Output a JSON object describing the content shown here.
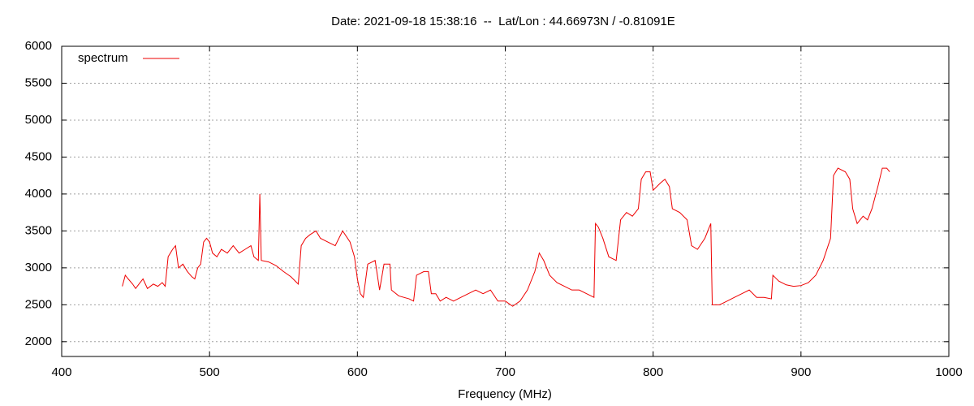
{
  "chart_data": {
    "type": "line",
    "title": "Date: 2021-09-18 15:38:16  --  Lat/Lon : 44.66973N / -0.81091E",
    "x_label": "Frequency (MHz)",
    "legend_position": "top-left",
    "grid": true,
    "xlim": [
      400,
      1000
    ],
    "xticks": [
      400,
      500,
      600,
      700,
      800,
      900,
      1000
    ],
    "ylim": [
      1800,
      6000
    ],
    "yticks": [
      2000,
      2500,
      3000,
      3500,
      4000,
      4500,
      5000,
      5500,
      6000
    ],
    "x": [
      441,
      443,
      445,
      448,
      450,
      453,
      455,
      458,
      462,
      465,
      468,
      470,
      472,
      475,
      477,
      479,
      482,
      485,
      488,
      490,
      492,
      494,
      496,
      498,
      500,
      502,
      505,
      508,
      512,
      516,
      520,
      524,
      528,
      530,
      533,
      534,
      535,
      540,
      545,
      550,
      555,
      560,
      562,
      565,
      568,
      572,
      575,
      580,
      585,
      590,
      595,
      598,
      600,
      602,
      604,
      607,
      612,
      615,
      618,
      622,
      623,
      628,
      635,
      638,
      640,
      645,
      648,
      650,
      653,
      656,
      660,
      665,
      670,
      675,
      680,
      685,
      690,
      695,
      700,
      705,
      710,
      715,
      720,
      723,
      726,
      730,
      735,
      740,
      745,
      750,
      755,
      760,
      761,
      763,
      766,
      770,
      775,
      778,
      782,
      786,
      790,
      792,
      795,
      798,
      800,
      805,
      808,
      811,
      813,
      818,
      823,
      826,
      830,
      835,
      839,
      840,
      845,
      850,
      855,
      860,
      865,
      870,
      875,
      880,
      881,
      885,
      890,
      895,
      900,
      905,
      910,
      915,
      920,
      922,
      925,
      930,
      933,
      935,
      938,
      942,
      945,
      948,
      952,
      955,
      958,
      960
    ],
    "series": [
      {
        "name": "spectrum",
        "color": "#ee0000",
        "values": [
          2750,
          2900,
          2850,
          2780,
          2720,
          2800,
          2850,
          2720,
          2780,
          2750,
          2800,
          2750,
          3150,
          3250,
          3300,
          3000,
          3050,
          2950,
          2880,
          2850,
          3000,
          3050,
          3350,
          3400,
          3350,
          3200,
          3150,
          3250,
          3200,
          3300,
          3200,
          3250,
          3300,
          3150,
          3100,
          4000,
          3100,
          3080,
          3030,
          2950,
          2880,
          2780,
          3300,
          3400,
          3450,
          3500,
          3400,
          3350,
          3300,
          3500,
          3350,
          3150,
          2850,
          2650,
          2600,
          3050,
          3100,
          2700,
          3050,
          3050,
          2700,
          2620,
          2580,
          2550,
          2900,
          2950,
          2950,
          2650,
          2650,
          2550,
          2600,
          2550,
          2600,
          2650,
          2700,
          2650,
          2700,
          2550,
          2550,
          2480,
          2550,
          2700,
          2950,
          3200,
          3100,
          2900,
          2800,
          2750,
          2700,
          2700,
          2650,
          2600,
          3600,
          3550,
          3400,
          3150,
          3100,
          3650,
          3750,
          3700,
          3800,
          4200,
          4300,
          4300,
          4050,
          4150,
          4200,
          4100,
          3800,
          3750,
          3650,
          3300,
          3250,
          3400,
          3600,
          2500,
          2500,
          2550,
          2600,
          2650,
          2700,
          2600,
          2600,
          2580,
          2900,
          2820,
          2770,
          2750,
          2760,
          2800,
          2900,
          3100,
          3400,
          4250,
          4350,
          4300,
          4200,
          3800,
          3600,
          3700,
          3650,
          3800,
          4100,
          4350,
          4350,
          4300
        ]
      }
    ]
  }
}
